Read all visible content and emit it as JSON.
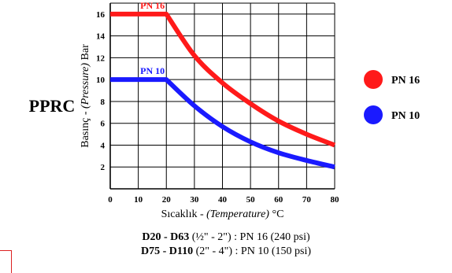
{
  "label_left": "PPRC",
  "chart_data": {
    "type": "line",
    "xlabel_plain": "Sıcaklık - ",
    "xlabel_italic": "(Temperature)",
    "xlabel_unit": " °C",
    "ylabel_plain": "Basınç - ",
    "ylabel_italic": "(Pressure)",
    "ylabel_unit": " Bar",
    "xlim": [
      0,
      80
    ],
    "ylim": [
      0,
      17
    ],
    "xticks": [
      0,
      10,
      20,
      30,
      40,
      50,
      60,
      70,
      80
    ],
    "yticks": [
      2,
      4,
      6,
      8,
      10,
      12,
      14,
      16
    ],
    "grid": true,
    "legend_position": "right",
    "series": [
      {
        "name": "PN 16",
        "color": "#ff1a1a",
        "x": [
          0,
          20,
          30,
          40,
          50,
          60,
          70,
          80
        ],
        "y": [
          16,
          16,
          12.2,
          9.7,
          7.8,
          6.2,
          5.0,
          4.0
        ]
      },
      {
        "name": "PN 10",
        "color": "#1a1aff",
        "x": [
          0,
          20,
          30,
          40,
          50,
          60,
          70,
          80
        ],
        "y": [
          10,
          10,
          7.6,
          5.7,
          4.3,
          3.3,
          2.6,
          2.0
        ]
      }
    ]
  },
  "footnotes": [
    {
      "bold": "D20 - D63",
      "rest": "  (½\" - 2\") : PN 16 (240 psi)"
    },
    {
      "bold": "D75 - D110",
      "rest": " (2\" - 4\") : PN 10 (150 psi)"
    }
  ]
}
